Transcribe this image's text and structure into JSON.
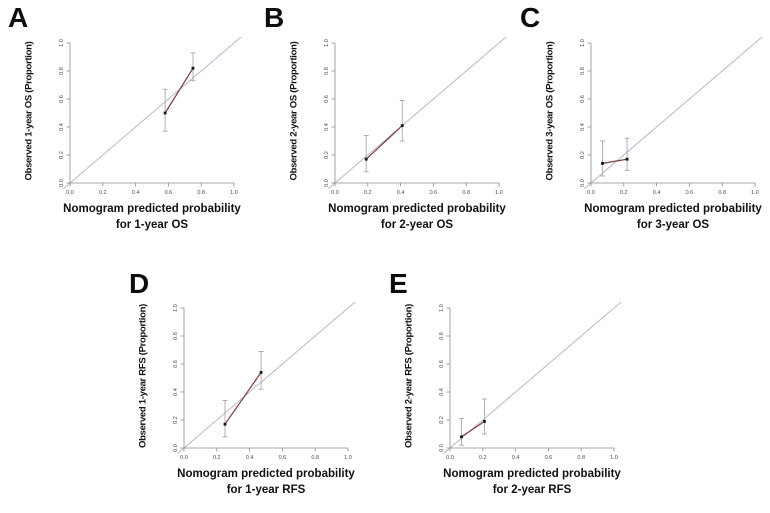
{
  "colors": {
    "background": "#ffffff",
    "axis": "#8c8c8c",
    "tick_label": "#4d4d4d",
    "label_text": "#111111",
    "panel_letter": "#0d0d0d",
    "point": "#151515",
    "error_bar": "#9e9e9e",
    "calibration_line": "#7b3a3e",
    "reference_line": "#b6b6d8"
  },
  "chart_data": [
    {
      "type": "scatter",
      "panel_label": "A",
      "xlabel": [
        "Nomogram predicted probability",
        "for 1-year OS"
      ],
      "ylabel": "Observed 1-year OS (Proportion)",
      "xlim": [
        0,
        1
      ],
      "ylim": [
        0,
        1
      ],
      "xticks": [
        "0.0",
        "0.2",
        "0.4",
        "0.6",
        "0.8",
        "1.0"
      ],
      "yticks": [
        "0.0",
        "0.2",
        "0.4",
        "0.6",
        "0.8",
        "1.0"
      ],
      "grid": false,
      "reference_line": "identity",
      "series": [
        {
          "name": "calibration",
          "points": [
            {
              "x": 0.58,
              "y": 0.5,
              "ci": [
                0.37,
                0.67
              ]
            },
            {
              "x": 0.75,
              "y": 0.82,
              "ci": [
                0.73,
                0.93
              ]
            }
          ]
        }
      ]
    },
    {
      "type": "scatter",
      "panel_label": "B",
      "xlabel": [
        "Nomogram predicted probability",
        "for 2-year OS"
      ],
      "ylabel": "Observed 2-year OS (Proportion)",
      "xlim": [
        0,
        1
      ],
      "ylim": [
        0,
        1
      ],
      "xticks": [
        "0.0",
        "0.2",
        "0.4",
        "0.6",
        "0.8",
        "1.0"
      ],
      "yticks": [
        "0.0",
        "0.2",
        "0.4",
        "0.6",
        "0.8",
        "1.0"
      ],
      "grid": false,
      "reference_line": "identity",
      "series": [
        {
          "name": "calibration",
          "points": [
            {
              "x": 0.19,
              "y": 0.17,
              "ci": [
                0.08,
                0.34
              ]
            },
            {
              "x": 0.41,
              "y": 0.41,
              "ci": [
                0.3,
                0.59
              ]
            }
          ]
        }
      ]
    },
    {
      "type": "scatter",
      "panel_label": "C",
      "xlabel": [
        "Nomogram predicted probability",
        "for 3-year OS"
      ],
      "ylabel": "Observed 3-year OS (Proportion)",
      "xlim": [
        0,
        1
      ],
      "ylim": [
        0,
        1
      ],
      "xticks": [
        "0.0",
        "0.2",
        "0.4",
        "0.6",
        "0.8",
        "1.0"
      ],
      "yticks": [
        "0.0",
        "0.2",
        "0.4",
        "0.6",
        "0.8",
        "1.0"
      ],
      "grid": false,
      "reference_line": "identity",
      "series": [
        {
          "name": "calibration",
          "points": [
            {
              "x": 0.07,
              "y": 0.14,
              "ci": [
                0.05,
                0.3
              ]
            },
            {
              "x": 0.22,
              "y": 0.17,
              "ci": [
                0.09,
                0.32
              ]
            }
          ]
        }
      ]
    },
    {
      "type": "scatter",
      "panel_label": "D",
      "xlabel": [
        "Nomogram predicted probability",
        "for 1-year RFS"
      ],
      "ylabel": "Observed 1-year RFS (Proportion)",
      "xlim": [
        0,
        1
      ],
      "ylim": [
        0,
        1
      ],
      "xticks": [
        "0.0",
        "0.2",
        "0.4",
        "0.6",
        "0.8",
        "1.0"
      ],
      "yticks": [
        "0.0",
        "0.2",
        "0.4",
        "0.6",
        "0.8",
        "1.0"
      ],
      "grid": false,
      "reference_line": "identity",
      "series": [
        {
          "name": "calibration",
          "points": [
            {
              "x": 0.25,
              "y": 0.17,
              "ci": [
                0.08,
                0.34
              ]
            },
            {
              "x": 0.47,
              "y": 0.54,
              "ci": [
                0.42,
                0.69
              ]
            }
          ]
        }
      ]
    },
    {
      "type": "scatter",
      "panel_label": "E",
      "xlabel": [
        "Nomogram predicted probability",
        "for 2-year RFS"
      ],
      "ylabel": "Observed 2-year RFS (Proportion)",
      "xlim": [
        0,
        1
      ],
      "ylim": [
        0,
        1
      ],
      "xticks": [
        "0.0",
        "0.2",
        "0.4",
        "0.6",
        "0.8",
        "1.0"
      ],
      "yticks": [
        "0.0",
        "0.2",
        "0.4",
        "0.6",
        "0.8",
        "1.0"
      ],
      "grid": false,
      "reference_line": "identity",
      "series": [
        {
          "name": "calibration",
          "points": [
            {
              "x": 0.07,
              "y": 0.08,
              "ci": [
                0.02,
                0.21
              ]
            },
            {
              "x": 0.21,
              "y": 0.19,
              "ci": [
                0.1,
                0.35
              ]
            }
          ]
        }
      ]
    }
  ]
}
